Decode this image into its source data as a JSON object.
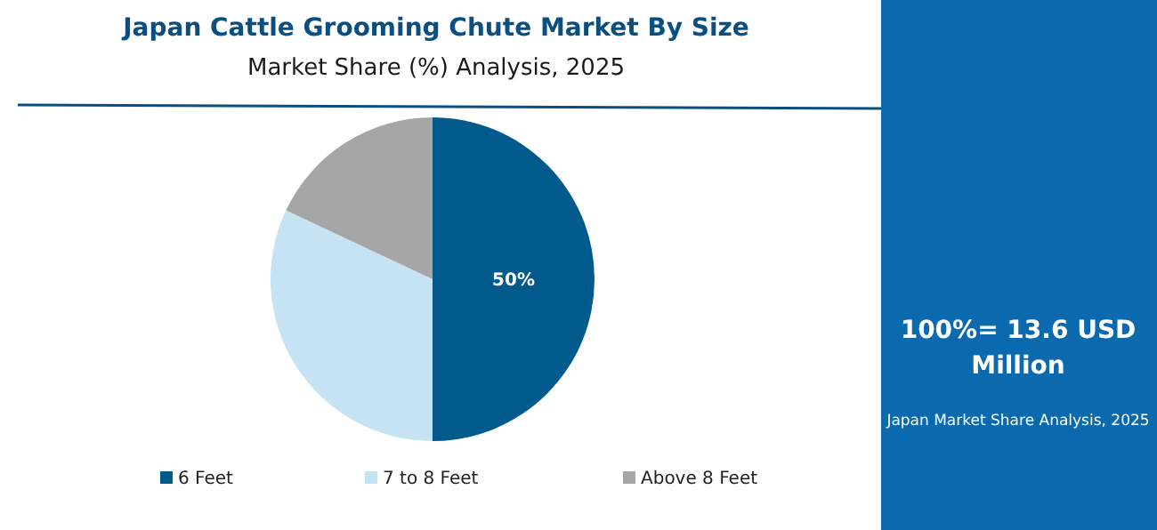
{
  "chart_data": {
    "type": "pie",
    "title": "Japan Cattle Grooming Chute Market By Size",
    "subtitle": "Market Share (%) Analysis, 2025",
    "categories": [
      "6 Feet",
      "7 to 8 Feet",
      "Above 8 Feet"
    ],
    "values": [
      50,
      32,
      18
    ],
    "colors": [
      "#005a8c",
      "#c5e3f3",
      "#a6a6a6"
    ],
    "value_labels": [
      "50%",
      null,
      null
    ],
    "legend": "bottom",
    "annotations": [
      "100%= 13.6 USD Million",
      "Japan Market Share Analysis, 2025"
    ]
  }
}
